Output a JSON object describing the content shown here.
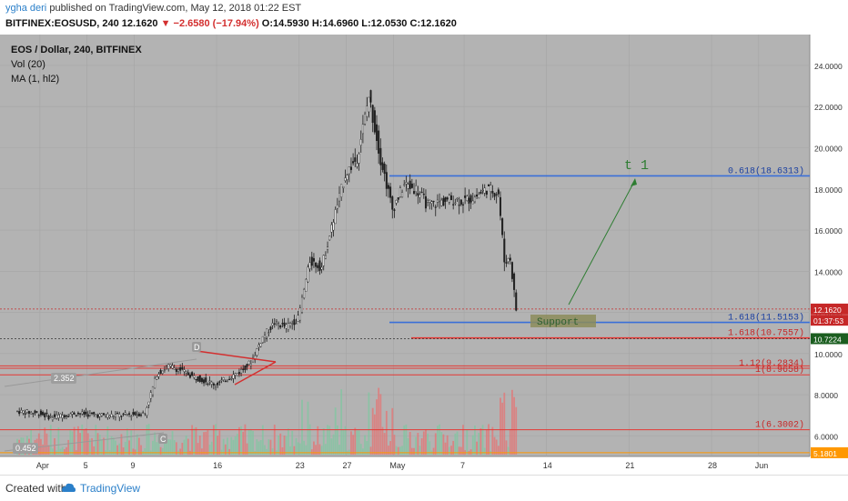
{
  "header": {
    "publisher": "ygha deri",
    "published_text": "published on TradingView.com, May 12, 2018 01:22 EST",
    "symbol": "BITFINEX:EOSUSD, 240",
    "last": "12.1620",
    "change": "−2.6580 (−17.94%)",
    "o": "O:14.5930",
    "h": "H:14.6960",
    "l": "L:12.0530",
    "c": "C:12.1620"
  },
  "legend": {
    "title": "EOS / Dollar, 240, BITFINEX",
    "vol": "Vol (20)",
    "ma": "MA (1, hl2)"
  },
  "footer": {
    "created_with": "Created with",
    "brand": "TradingView"
  },
  "colors": {
    "background": "#b3b3b3",
    "up": "#1e1e1e",
    "down": "#1e1e1e",
    "blue_line": "#3a6fd8",
    "red_line": "#e53935",
    "orange_line": "#ff9800",
    "vol_up": "#7fc7a0",
    "vol_down": "#e57373",
    "price_label_bg": "#c62828",
    "ma_label_bg": "#1b5e20"
  },
  "chart_data": {
    "type": "candlestick",
    "title": "EOS / Dollar, 240, BITFINEX",
    "ylim": [
      5.0,
      25.5
    ],
    "y_ticks": [
      "6.0000",
      "8.0000",
      "10.0000",
      "12.0000",
      "14.0000",
      "16.0000",
      "18.0000",
      "20.0000",
      "22.0000",
      "24.0000"
    ],
    "x_ticks": [
      "Apr",
      "5",
      "9",
      "16",
      "23",
      "27",
      "May",
      "7",
      "14",
      "21",
      "28",
      "Jun"
    ],
    "price_path": [
      [
        "2018-03-30",
        7.2
      ],
      [
        "2018-04-01",
        7.1
      ],
      [
        "2018-04-02",
        6.9
      ],
      [
        "2018-04-04",
        7.1
      ],
      [
        "2018-04-06",
        7.0
      ],
      [
        "2018-04-08",
        7.0
      ],
      [
        "2018-04-10",
        7.1
      ],
      [
        "2018-04-11",
        9.0
      ],
      [
        "2018-04-12",
        9.4
      ],
      [
        "2018-04-13",
        9.2
      ],
      [
        "2018-04-14",
        8.9
      ],
      [
        "2018-04-16",
        8.5
      ],
      [
        "2018-04-17",
        8.8
      ],
      [
        "2018-04-18",
        9.1
      ],
      [
        "2018-04-19",
        9.6
      ],
      [
        "2018-04-20",
        10.8
      ],
      [
        "2018-04-21",
        11.5
      ],
      [
        "2018-04-22",
        11.3
      ],
      [
        "2018-04-23",
        11.7
      ],
      [
        "2018-04-24",
        14.5
      ],
      [
        "2018-04-25",
        14.2
      ],
      [
        "2018-04-26",
        16.5
      ],
      [
        "2018-04-27",
        18.7
      ],
      [
        "2018-04-28",
        19.5
      ],
      [
        "2018-04-29",
        22.5
      ],
      [
        "2018-04-30",
        19.5
      ],
      [
        "2018-05-01",
        17.0
      ],
      [
        "2018-05-02",
        18.2
      ],
      [
        "2018-05-03",
        18.0
      ],
      [
        "2018-05-04",
        17.2
      ],
      [
        "2018-05-06",
        17.5
      ],
      [
        "2018-05-07",
        17.4
      ],
      [
        "2018-05-08",
        17.6
      ],
      [
        "2018-05-09",
        18.0
      ],
      [
        "2018-05-10",
        17.8
      ],
      [
        "2018-05-10T12",
        14.5
      ],
      [
        "2018-05-11",
        14.6
      ],
      [
        "2018-05-11T12",
        12.16
      ]
    ],
    "volume_note": "volume bars in lower pane (not quantified)",
    "levels": [
      {
        "label": "0.618(18.6313)",
        "value": 18.6313,
        "color": "blue"
      },
      {
        "label": "1.618(11.5153)",
        "value": 11.5153,
        "color": "blue"
      },
      {
        "label": "1.618(10.7557)",
        "value": 10.7557,
        "color": "red"
      },
      {
        "label": "1.12(9.2834)",
        "value": 9.2834,
        "color": "red"
      },
      {
        "label": "1(8.9658)",
        "value": 8.9658,
        "color": "red"
      },
      {
        "label": "1(6.3002)",
        "value": 6.3002,
        "color": "red"
      },
      {
        "label": "",
        "value": 5.1801,
        "color": "orange"
      }
    ],
    "price_labels": [
      {
        "text": "12.1620",
        "value": 12.162,
        "kind": "price"
      },
      {
        "text": "01:37:53",
        "value": 11.62,
        "kind": "timer"
      },
      {
        "text": "10.7224",
        "value": 10.7224,
        "kind": "ma"
      },
      {
        "text": "5.1801",
        "value": 5.1801,
        "kind": "orange"
      }
    ],
    "annotations": {
      "target": "t 1",
      "support": "Support",
      "point_d": "D",
      "point_c": "C",
      "val_2352": "2.352",
      "val_0452": "0.452"
    }
  }
}
